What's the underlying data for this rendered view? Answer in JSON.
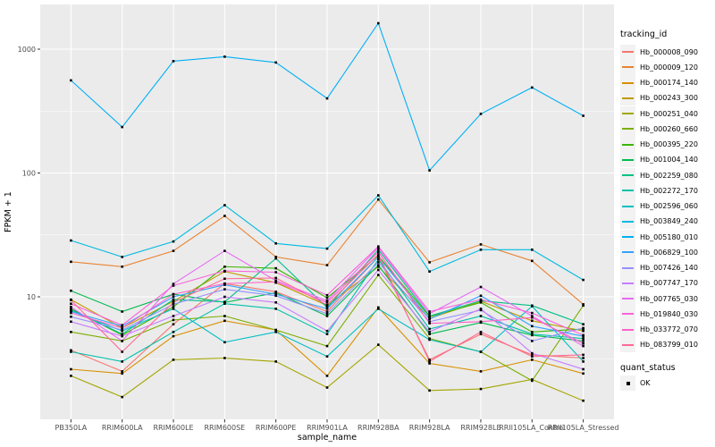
{
  "figure": {
    "y_axis_title": "FPKM + 1",
    "x_axis_title": "sample_name"
  },
  "legend": {
    "tracking_title": "tracking_id",
    "quant_title": "quant_status",
    "quant_ok_label": "OK"
  },
  "chart_data": {
    "type": "line",
    "title": "",
    "xlabel": "sample_name",
    "ylabel": "FPKM + 1",
    "y_scale": "log10",
    "ylim": [
      1,
      2000
    ],
    "y_major_ticks": [
      10,
      100,
      1000
    ],
    "y_minor_ticks": [
      3.162,
      31.62,
      316.2
    ],
    "grid": true,
    "legend_position": "right",
    "point_marker": {
      "shape": "square",
      "color": "#000000",
      "meaning": "quant_status OK"
    },
    "colors": {
      "panel_bg": "#EBEBEB",
      "grid": "#FFFFFF",
      "point": "#000000",
      "tick_text": "#4D4D4D",
      "axis_title_text": "#000000",
      "tick_mark": "#333333"
    },
    "categories": [
      "PB350LA",
      "RRIM600LA",
      "RRIM600LE",
      "RRIM600SE",
      "RRIM600PE",
      "RRIM901LA",
      "RRIM928BA",
      "RRIM928LA",
      "RRIM928LE",
      "RRII105LA_Control",
      "RRII105LA_Stressed"
    ],
    "series": [
      {
        "name": "Hb_000008_090",
        "color": "#F8766D",
        "values": [
          3.7,
          2.5,
          6.0,
          12.8,
          11.0,
          7.6,
          21.0,
          3.1,
          5.0,
          3.4,
          3.2
        ]
      },
      {
        "name": "Hb_000009_120",
        "color": "#EA8331",
        "values": [
          19.2,
          17.5,
          23.5,
          45.0,
          21.0,
          18.0,
          61.0,
          19.0,
          26.5,
          19.5,
          8.7
        ]
      },
      {
        "name": "Hb_000174_140",
        "color": "#D89000",
        "values": [
          2.6,
          2.4,
          4.8,
          6.4,
          5.4,
          2.3,
          8.2,
          2.9,
          2.5,
          3.1,
          2.4
        ]
      },
      {
        "name": "Hb_000243_300",
        "color": "#C09B00",
        "values": [
          9.5,
          5.6,
          9.2,
          16.0,
          13.0,
          8.5,
          17.5,
          6.7,
          9.2,
          6.4,
          5.3
        ]
      },
      {
        "name": "Hb_000251_040",
        "color": "#A3A500",
        "values": [
          2.3,
          1.55,
          3.1,
          3.2,
          3.0,
          1.85,
          4.1,
          1.75,
          1.8,
          2.15,
          1.45
        ]
      },
      {
        "name": "Hb_000260_660",
        "color": "#7CAE00",
        "values": [
          5.2,
          4.4,
          6.5,
          7.0,
          5.4,
          4.0,
          15.0,
          4.6,
          3.6,
          2.1,
          8.5
        ]
      },
      {
        "name": "Hb_000395_220",
        "color": "#39B600",
        "values": [
          8.0,
          4.9,
          8.3,
          17.5,
          17.0,
          9.8,
          21.5,
          6.9,
          9.0,
          5.2,
          5.5
        ]
      },
      {
        "name": "Hb_001004_140",
        "color": "#00BB4E",
        "values": [
          11.2,
          7.6,
          10.5,
          9.0,
          10.8,
          7.0,
          18.0,
          5.0,
          6.2,
          4.9,
          4.4
        ]
      },
      {
        "name": "Hb_002259_080",
        "color": "#00C087",
        "values": [
          7.9,
          5.0,
          9.5,
          9.1,
          20.4,
          8.2,
          24.0,
          7.0,
          9.3,
          8.5,
          6.0
        ]
      },
      {
        "name": "Hb_002272_170",
        "color": "#00C1AB",
        "values": [
          3.6,
          3.0,
          5.2,
          8.8,
          8.0,
          5.0,
          20.0,
          5.5,
          7.0,
          5.0,
          4.6
        ]
      },
      {
        "name": "Hb_002596_060",
        "color": "#00BFC4",
        "values": [
          7.7,
          5.3,
          8.0,
          4.3,
          5.2,
          3.3,
          8.0,
          4.5,
          3.6,
          8.4,
          3.0
        ]
      },
      {
        "name": "Hb_003849_240",
        "color": "#00BAE0",
        "values": [
          28.5,
          21.0,
          28.0,
          55.0,
          27.0,
          24.5,
          66.0,
          16.0,
          24.0,
          24.0,
          13.7
        ]
      },
      {
        "name": "Hb_005180_010",
        "color": "#00B0F6",
        "values": [
          560,
          235,
          800,
          870,
          780,
          400,
          1620,
          105,
          300,
          490,
          290
        ]
      },
      {
        "name": "Hb_006829_100",
        "color": "#35A2FF",
        "values": [
          7.6,
          5.8,
          10.0,
          12.5,
          10.5,
          8.0,
          21.0,
          6.6,
          10.2,
          5.8,
          4.8
        ]
      },
      {
        "name": "Hb_007426_140",
        "color": "#9590FF",
        "values": [
          6.9,
          5.4,
          8.7,
          11.5,
          10.2,
          7.3,
          19.0,
          6.3,
          7.8,
          4.4,
          5.6
        ]
      },
      {
        "name": "Hb_007747_170",
        "color": "#C77CFF",
        "values": [
          6.3,
          4.8,
          7.0,
          10.0,
          9.0,
          5.3,
          16.5,
          5.2,
          8.0,
          3.5,
          2.6
        ]
      },
      {
        "name": "Hb_007765_030",
        "color": "#E76BF3",
        "values": [
          8.3,
          4.4,
          12.7,
          23.5,
          13.5,
          9.3,
          25.0,
          7.3,
          12.0,
          7.0,
          4.0
        ]
      },
      {
        "name": "Hb_019840_030",
        "color": "#FA62DB",
        "values": [
          8.8,
          5.9,
          12.3,
          16.2,
          15.8,
          10.3,
          25.5,
          7.6,
          9.5,
          7.4,
          4.9
        ]
      },
      {
        "name": "Hb_033772_070",
        "color": "#FF61C9",
        "values": [
          7.4,
          5.6,
          10.5,
          12.8,
          13.2,
          9.0,
          23.0,
          6.1,
          6.3,
          6.8,
          4.2
        ]
      },
      {
        "name": "Hb_083799_010",
        "color": "#FF6A98",
        "values": [
          9.4,
          3.6,
          9.0,
          14.0,
          14.2,
          8.6,
          22.0,
          3.0,
          5.2,
          3.3,
          3.4
        ]
      }
    ]
  }
}
